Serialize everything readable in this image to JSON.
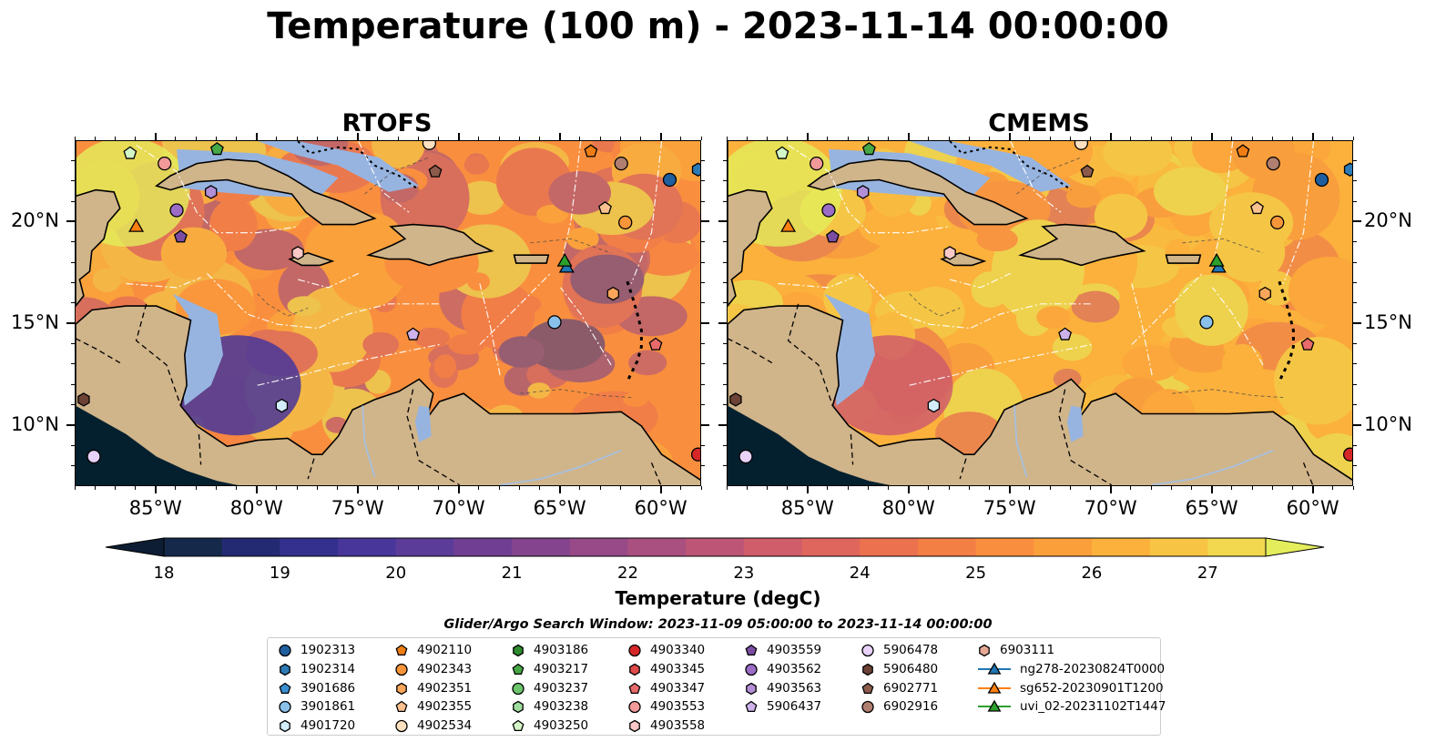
{
  "title": "Temperature (100 m) - 2023-11-14 00:00:00",
  "panels": [
    {
      "title": "RTOFS"
    },
    {
      "title": "CMEMS"
    }
  ],
  "axes": {
    "lon_ticks": [
      "85°W",
      "80°W",
      "75°W",
      "70°W",
      "65°W",
      "60°W"
    ],
    "lat_ticks": [
      "20°N",
      "15°N",
      "10°N"
    ],
    "lon_range": [
      -89.0,
      -58.0
    ],
    "lat_range": [
      7.0,
      24.0
    ]
  },
  "colorbar": {
    "label": "Temperature (degC)",
    "ticks": [
      "18",
      "19",
      "20",
      "21",
      "22",
      "23",
      "24",
      "25",
      "26",
      "27"
    ],
    "range": [
      18,
      27
    ],
    "colors": [
      "#0d1d33",
      "#15294a",
      "#242a72",
      "#33318d",
      "#48369a",
      "#5c3c99",
      "#703f94",
      "#84448e",
      "#974a87",
      "#aa5080",
      "#bd5676",
      "#cf5d6a",
      "#df665c",
      "#ec714f",
      "#f47f45",
      "#f98f3e",
      "#fb9f3b",
      "#fbb13c",
      "#f8c443",
      "#f1d84e",
      "#e4ed5b"
    ]
  },
  "legend": {
    "title": "Glider/Argo Search Window: 2023-11-09 05:00:00 to 2023-11-14 00:00:00",
    "columns": [
      [
        {
          "label": "1902313",
          "marker": "circle",
          "color": "#1f5fa0"
        },
        {
          "label": "1902314",
          "marker": "hexagon",
          "color": "#2c7bb6"
        },
        {
          "label": "3901686",
          "marker": "pentagon",
          "color": "#3a8fd0"
        },
        {
          "label": "3901861",
          "marker": "circle",
          "color": "#89c1ea"
        },
        {
          "label": "4901720",
          "marker": "hexagon",
          "color": "#d2ecfb"
        }
      ],
      [
        {
          "label": "4902110",
          "marker": "pentagon",
          "color": "#f07d14"
        },
        {
          "label": "4902343",
          "marker": "circle",
          "color": "#f7953a"
        },
        {
          "label": "4902351",
          "marker": "hexagon",
          "color": "#f9a65a"
        },
        {
          "label": "4902355",
          "marker": "pentagon",
          "color": "#fbc28f"
        },
        {
          "label": "4902534",
          "marker": "circle",
          "color": "#fde0c0"
        }
      ],
      [
        {
          "label": "4903186",
          "marker": "hexagon",
          "color": "#2e8b2e"
        },
        {
          "label": "4903217",
          "marker": "pentagon",
          "color": "#46a846"
        },
        {
          "label": "4903237",
          "marker": "circle",
          "color": "#6cc46c"
        },
        {
          "label": "4903238",
          "marker": "hexagon",
          "color": "#9fdd9f"
        },
        {
          "label": "4903250",
          "marker": "pentagon",
          "color": "#d4f7c8"
        }
      ],
      [
        {
          "label": "4903340",
          "marker": "circle",
          "color": "#d62728"
        },
        {
          "label": "4903345",
          "marker": "hexagon",
          "color": "#df4a4b"
        },
        {
          "label": "4903347",
          "marker": "pentagon",
          "color": "#e86a6a"
        },
        {
          "label": "4903553",
          "marker": "circle",
          "color": "#f29a99"
        },
        {
          "label": "4903558",
          "marker": "hexagon",
          "color": "#f9c8c7"
        }
      ],
      [
        {
          "label": "4903559",
          "marker": "pentagon",
          "color": "#7b4ea3"
        },
        {
          "label": "4903562",
          "marker": "circle",
          "color": "#9b6dc6"
        },
        {
          "label": "4903563",
          "marker": "hexagon",
          "color": "#b38fd8"
        },
        {
          "label": "5906437",
          "marker": "pentagon",
          "color": "#cdb3ea"
        }
      ],
      [
        {
          "label": "5906478",
          "marker": "circle",
          "color": "#e8d2fa"
        },
        {
          "label": "5906480",
          "marker": "hexagon",
          "color": "#6b4235"
        },
        {
          "label": "6902771",
          "marker": "pentagon",
          "color": "#8c5b4b"
        },
        {
          "label": "6902916",
          "marker": "circle",
          "color": "#b07f70"
        }
      ],
      [
        {
          "label": "6903111",
          "marker": "hexagon",
          "color": "#e5a994"
        },
        {
          "label": "ng278-20230824T0000",
          "marker": "triangle-line",
          "color": "#1f77b4"
        },
        {
          "label": "sg652-20230901T1200",
          "marker": "triangle-line",
          "color": "#ff7f0e"
        },
        {
          "label": "uvi_02-20231102T1447",
          "marker": "triangle-line",
          "color": "#2ca02c"
        }
      ]
    ]
  },
  "platforms": [
    {
      "id": "1902313",
      "lon": -59.6,
      "lat": 22.1
    },
    {
      "id": "1902314",
      "lon": -58.2,
      "lat": 22.6
    },
    {
      "id": "3901861",
      "lon": -65.3,
      "lat": 15.1
    },
    {
      "id": "4901720",
      "lon": -78.8,
      "lat": 11.0
    },
    {
      "id": "4902110",
      "lon": -63.5,
      "lat": 23.5
    },
    {
      "id": "4902534",
      "lon": -71.5,
      "lat": 23.9
    },
    {
      "id": "4903250",
      "lon": -86.3,
      "lat": 23.4
    },
    {
      "id": "4903217",
      "lon": -82.0,
      "lat": 23.6
    },
    {
      "id": "4903340",
      "lon": -58.2,
      "lat": 8.6
    },
    {
      "id": "4903347",
      "lon": -60.3,
      "lat": 14.0
    },
    {
      "id": "4903553",
      "lon": -84.6,
      "lat": 22.9
    },
    {
      "id": "4903558",
      "lon": -78.0,
      "lat": 18.5
    },
    {
      "id": "4903559",
      "lon": -83.8,
      "lat": 19.3
    },
    {
      "id": "4903562",
      "lon": -84.0,
      "lat": 20.6
    },
    {
      "id": "4903563",
      "lon": -82.3,
      "lat": 21.5
    },
    {
      "id": "5906437",
      "lon": -72.3,
      "lat": 14.5
    },
    {
      "id": "5906478",
      "lon": -88.1,
      "lat": 8.5
    },
    {
      "id": "5906480",
      "lon": -88.6,
      "lat": 11.3
    },
    {
      "id": "6902771",
      "lon": -71.2,
      "lat": 22.5
    },
    {
      "id": "6902916",
      "lon": -62.0,
      "lat": 22.9
    },
    {
      "id": "4902351",
      "lon": -62.4,
      "lat": 16.5
    },
    {
      "id": "4902355",
      "lon": -62.8,
      "lat": 20.7
    },
    {
      "id": "4902343",
      "lon": -61.8,
      "lat": 20.0
    },
    {
      "id": "ng278-20230824T0000",
      "lon": -64.7,
      "lat": 17.8
    },
    {
      "id": "sg652-20230901T1200",
      "lon": -86.0,
      "lat": 19.8
    },
    {
      "id": "uvi_02-20231102T1447",
      "lon": -64.8,
      "lat": 18.1
    }
  ]
}
